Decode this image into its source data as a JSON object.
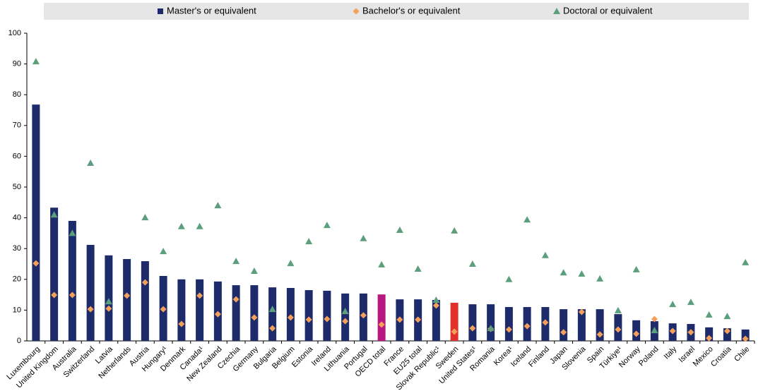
{
  "chart_data": {
    "type": "bar",
    "categories": [
      "Luxembourg",
      "United Kingdom",
      "Australia",
      "Switzerland",
      "Latvia",
      "Netherlands",
      "Austria",
      "Hungary¹",
      "Denmark",
      "Canada¹",
      "New Zealand",
      "Czechia",
      "Germany",
      "Bulgaria",
      "Belgium",
      "Estonia",
      "Ireland",
      "Lithuania",
      "Portugal",
      "OECD total",
      "France",
      "EU25 total",
      "Slovak Republic¹",
      "Sweden",
      "United States¹",
      "Romania",
      "Korea¹",
      "Iceland",
      "Finland",
      "Japan",
      "Slovenia",
      "Spain",
      "Türkiye¹",
      "Norway",
      "Poland",
      "Italy",
      "Israel",
      "Mexico",
      "Croatia",
      "Chile"
    ],
    "series": [
      {
        "name": "Master's or equivalent",
        "color": "#1d2b6b",
        "marker": "bar",
        "values": [
          76.8,
          43.3,
          39,
          31.2,
          27.8,
          26.6,
          25.9,
          21.1,
          20,
          20,
          19.3,
          18.1,
          18.1,
          17.4,
          17.2,
          16.5,
          16.3,
          15.4,
          15.4,
          15.1,
          13.5,
          13.5,
          13.3,
          12.4,
          11.9,
          11.9,
          11,
          11,
          11,
          10.3,
          10.3,
          10.3,
          8.7,
          6.7,
          6.4,
          5.7,
          5.5,
          4.4,
          4.1,
          3.7
        ],
        "colors": [
          "#1d2b6b",
          "#1d2b6b",
          "#1d2b6b",
          "#1d2b6b",
          "#1d2b6b",
          "#1d2b6b",
          "#1d2b6b",
          "#1d2b6b",
          "#1d2b6b",
          "#1d2b6b",
          "#1d2b6b",
          "#1d2b6b",
          "#1d2b6b",
          "#1d2b6b",
          "#1d2b6b",
          "#1d2b6b",
          "#1d2b6b",
          "#1d2b6b",
          "#1d2b6b",
          "#b8177f",
          "#1d2b6b",
          "#1d2b6b",
          "#1d2b6b",
          "#e2312a",
          "#1d2b6b",
          "#1d2b6b",
          "#1d2b6b",
          "#1d2b6b",
          "#1d2b6b",
          "#1d2b6b",
          "#1d2b6b",
          "#1d2b6b",
          "#1d2b6b",
          "#1d2b6b",
          "#1d2b6b",
          "#1d2b6b",
          "#1d2b6b",
          "#1d2b6b",
          "#1d2b6b",
          "#1d2b6b"
        ]
      },
      {
        "name": "Bachelor's or equivalent",
        "color": "#f4a05a",
        "marker": "diamond",
        "values": [
          25.2,
          14.9,
          14.9,
          10.3,
          10.5,
          14.7,
          19,
          10.3,
          5.5,
          14.7,
          8.7,
          13.5,
          7.6,
          4.1,
          7.6,
          6.9,
          7.1,
          6.4,
          8.3,
          5.3,
          6.9,
          6.9,
          11.5,
          3,
          4.1,
          3.9,
          3.7,
          4.8,
          6,
          2.8,
          9.4,
          2.1,
          3.7,
          2.3,
          7.1,
          3.2,
          2.8,
          0.9,
          3.2,
          0.7
        ]
      },
      {
        "name": "Doctoral or equivalent",
        "color": "#5c9f7d",
        "marker": "triangle",
        "values": [
          90.8,
          41,
          35,
          57.8,
          12.8,
          null,
          40.1,
          29.1,
          37.2,
          37.2,
          44,
          25.9,
          22.7,
          10.3,
          25.2,
          32.3,
          37.6,
          9.6,
          33.3,
          24.8,
          36,
          23.4,
          13.3,
          35.8,
          25,
          4.1,
          20,
          39.4,
          27.8,
          22.2,
          21.8,
          20.2,
          9.9,
          23.2,
          3.4,
          11.9,
          12.6,
          8.5,
          8,
          25.5
        ]
      }
    ],
    "ylim": [
      0,
      100
    ],
    "yticks": [
      0,
      10,
      20,
      30,
      40,
      50,
      60,
      70,
      80,
      90,
      100
    ],
    "grid": false,
    "legend": "top"
  }
}
